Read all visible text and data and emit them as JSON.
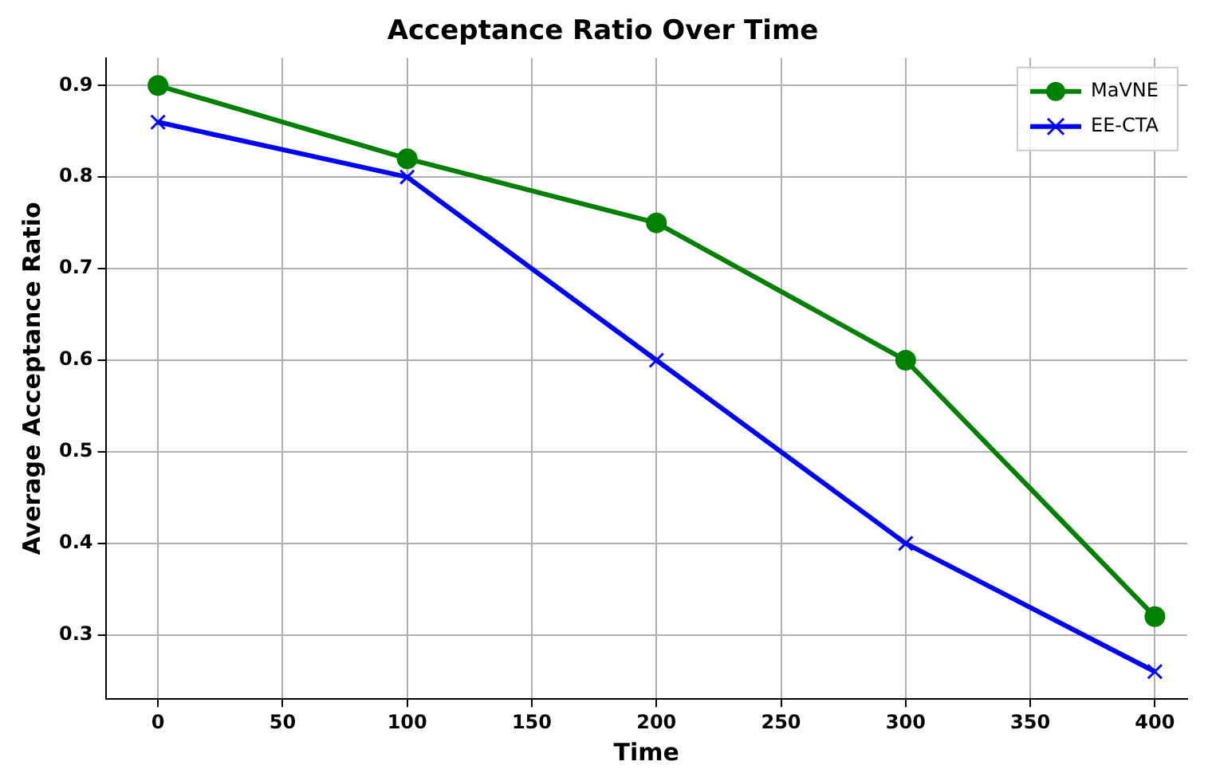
{
  "chart_data": {
    "type": "line",
    "title": "Acceptance Ratio Over Time",
    "xlabel": "Time",
    "ylabel": "Average Acceptance Ratio",
    "x": [
      0,
      100,
      200,
      300,
      400
    ],
    "series": [
      {
        "name": "MaVNE",
        "color": "#008000",
        "marker": "circle",
        "values": [
          0.9,
          0.82,
          0.75,
          0.6,
          0.32
        ]
      },
      {
        "name": "EE-CTA",
        "color": "#0000ff",
        "marker": "cross",
        "values": [
          0.86,
          0.8,
          0.6,
          0.4,
          0.26
        ]
      }
    ],
    "xlim": [
      -21,
      413
    ],
    "xticks": [
      0,
      50,
      100,
      150,
      200,
      250,
      300,
      350,
      400
    ],
    "ylim": [
      0.23,
      0.93
    ],
    "yticks": [
      0.3,
      0.4,
      0.5,
      0.6,
      0.7,
      0.8,
      0.9
    ],
    "grid": true,
    "legend": "top right"
  }
}
